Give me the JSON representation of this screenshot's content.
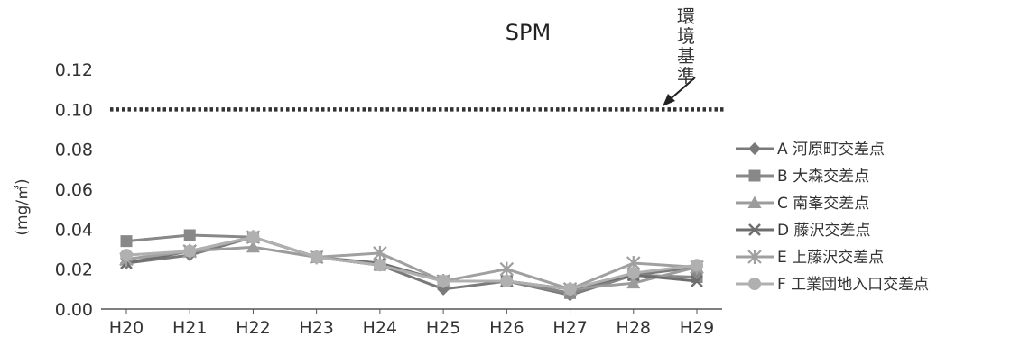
{
  "chart_data": {
    "type": "line",
    "title": "SPM",
    "ylabel": "(mg/㎥)",
    "xlabel": "",
    "categories": [
      "H20",
      "H21",
      "H22",
      "H23",
      "H24",
      "H25",
      "H26",
      "H27",
      "H28",
      "H29"
    ],
    "yticks": [
      "0.00",
      "0.02",
      "0.04",
      "0.06",
      "0.08",
      "0.10",
      "0.12"
    ],
    "ylim": [
      0,
      0.12
    ],
    "grid": false,
    "legend_position": "right",
    "reference_line": {
      "value": 0.1,
      "style": "dotted",
      "label": "環境基準"
    },
    "series": [
      {
        "name": "A 河原町交差点",
        "marker": "diamond",
        "color": "#7a7a7a",
        "values": [
          0.023,
          0.027,
          0.036,
          0.026,
          0.022,
          0.01,
          0.014,
          0.007,
          0.017,
          0.021
        ]
      },
      {
        "name": "B 大森交差点",
        "marker": "square",
        "color": "#888888",
        "values": [
          0.034,
          0.037,
          0.036,
          0.026,
          0.022,
          0.014,
          0.014,
          0.008,
          0.017,
          0.016
        ]
      },
      {
        "name": "C 南峯交差点",
        "marker": "triangle",
        "color": "#9c9c9c",
        "values": [
          0.025,
          0.029,
          0.031,
          0.026,
          0.022,
          0.014,
          0.014,
          0.01,
          0.013,
          0.021
        ]
      },
      {
        "name": "D 藤沢交差点",
        "marker": "x",
        "color": "#6e6e6e",
        "values": [
          0.023,
          0.029,
          0.036,
          0.026,
          0.023,
          0.014,
          0.014,
          0.01,
          0.017,
          0.014
        ]
      },
      {
        "name": "E 上藤沢交差点",
        "marker": "star",
        "color": "#a0a0a0",
        "values": [
          0.025,
          0.029,
          0.036,
          0.026,
          0.028,
          0.014,
          0.02,
          0.01,
          0.023,
          0.021
        ]
      },
      {
        "name": "F 工業団地入口交差点",
        "marker": "circle",
        "color": "#b0b0b0",
        "values": [
          0.027,
          0.029,
          0.036,
          0.026,
          0.022,
          0.014,
          0.014,
          0.01,
          0.018,
          0.022
        ]
      }
    ]
  }
}
